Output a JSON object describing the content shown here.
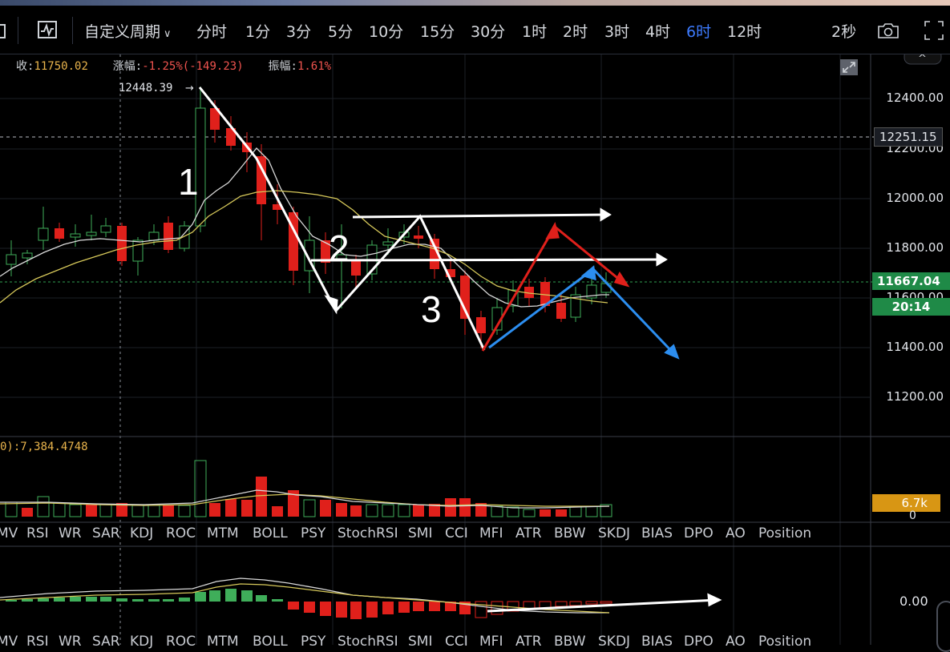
{
  "toolbar": {
    "custom_period": "自定义周期",
    "periods": [
      "分时",
      "1分",
      "3分",
      "5分",
      "10分",
      "15分",
      "30分",
      "1时",
      "2时",
      "3时",
      "4时",
      "6时",
      "12时"
    ],
    "active_period": "6时",
    "countdown": "2秒"
  },
  "info": {
    "close_label": "收:",
    "close_value": "11750.02",
    "change_label": "涨幅:",
    "change_value": "-1.25%(-149.23)",
    "amplitude_label": "振幅:",
    "amplitude_value": "1.61%"
  },
  "annotations": {
    "high_marker": "12448.39",
    "wave_labels": [
      "1",
      "2",
      "3"
    ]
  },
  "price_axis": {
    "ticks": [
      "12400.00",
      "12200.00",
      "12000.00",
      "11800.00",
      "11600.00",
      "11400.00",
      "11200.00"
    ],
    "dashed_price": "12251.15",
    "current_price": "11667.04",
    "countdown": "20:14"
  },
  "volume": {
    "ma_label": "0):",
    "ma_value": "7,384.4748",
    "tag": "6.7k",
    "zero": "0"
  },
  "macd": {
    "zero": "0.00"
  },
  "indicator_tabs": [
    "MV",
    "RSI",
    "WR",
    "SAR",
    "KDJ",
    "ROC",
    "MTM",
    "BOLL",
    "PSY",
    "StochRSI",
    "SMI",
    "CCI",
    "MFI",
    "ATR",
    "BBW",
    "SKDJ",
    "BIAS",
    "DPO",
    "AO",
    "Position"
  ],
  "colors": {
    "up": "#3fae5a",
    "down": "#e0201b",
    "accent": "#3d7bff",
    "current_price_tag": "#1f8a47",
    "volume_tag": "#d89614"
  }
}
